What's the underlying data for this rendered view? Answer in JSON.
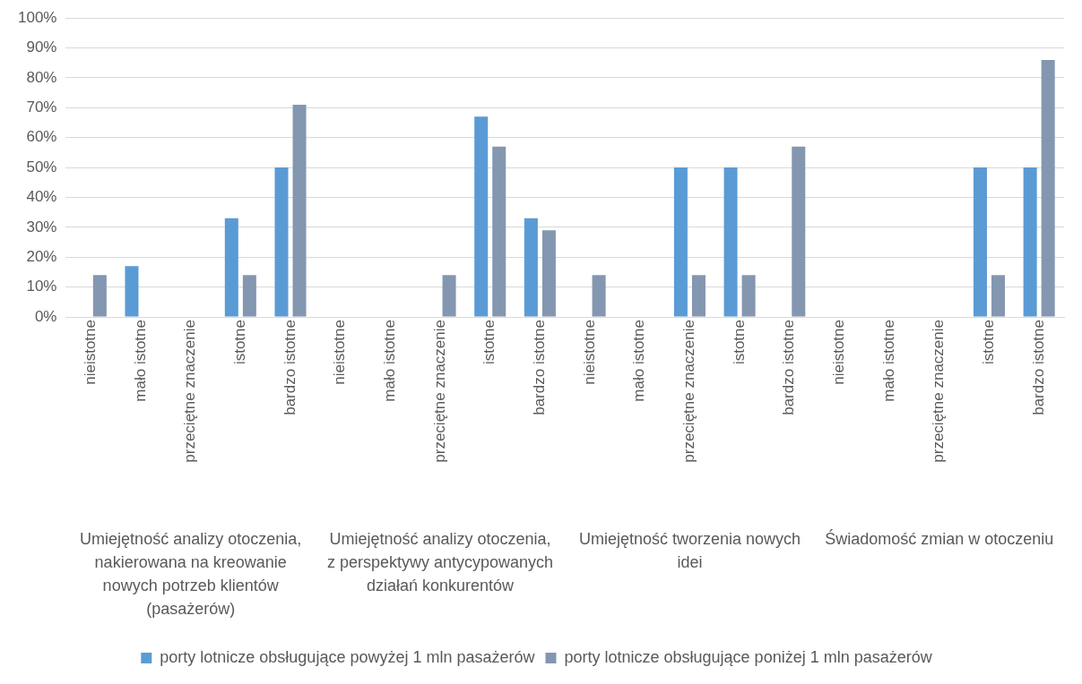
{
  "chart_data": {
    "type": "bar",
    "categories": [
      "nieistotne",
      "mało istotne",
      "przeciętne znaczenie",
      "istotne",
      "bardzo istotne",
      "nieistotne",
      "mało istotne",
      "przeciętne znaczenie",
      "istotne",
      "bardzo istotne",
      "nieistotne",
      "mało istotne",
      "przeciętne znaczenie",
      "istotne",
      "bardzo istotne",
      "nieistotne",
      "mało istotne",
      "przeciętne znaczenie",
      "istotne",
      "bardzo istotne"
    ],
    "series": [
      {
        "name": "porty lotnicze obsługujące powyżej 1 mln pasażerów",
        "color": "#5b9bd5",
        "values": [
          0,
          17,
          0,
          33,
          50,
          0,
          0,
          0,
          67,
          33,
          0,
          0,
          50,
          50,
          0,
          0,
          0,
          0,
          50,
          50
        ]
      },
      {
        "name": "porty lotnicze obsługujące poniżej 1 mln pasażerów",
        "color": "#8497b0",
        "values": [
          14,
          0,
          0,
          14,
          71,
          0,
          0,
          14,
          57,
          29,
          14,
          0,
          14,
          14,
          57,
          0,
          0,
          0,
          14,
          86
        ]
      }
    ],
    "annotations": [
      "Umiejętność analizy otoczenia, nakierowana na kreowanie nowych potrzeb klientów (pasażerów)",
      "Umiejętność analizy otoczenia, z perspektywy antycypowanych działań konkurentów",
      "Umiejętność tworzenia nowych idei",
      "Świadomość zmian w otoczeniu"
    ],
    "ylim": [
      0,
      100
    ],
    "yticks": [
      {
        "value": 0,
        "label": "0%"
      },
      {
        "value": 10,
        "label": "10%"
      },
      {
        "value": 20,
        "label": "20%"
      },
      {
        "value": 30,
        "label": "30%"
      },
      {
        "value": 40,
        "label": "40%"
      },
      {
        "value": 50,
        "label": "50%"
      },
      {
        "value": 60,
        "label": "60%"
      },
      {
        "value": 70,
        "label": "70%"
      },
      {
        "value": 80,
        "label": "80%"
      },
      {
        "value": 90,
        "label": "90%"
      },
      {
        "value": 100,
        "label": "100%"
      }
    ],
    "grid": "y",
    "legend": "bottom"
  }
}
